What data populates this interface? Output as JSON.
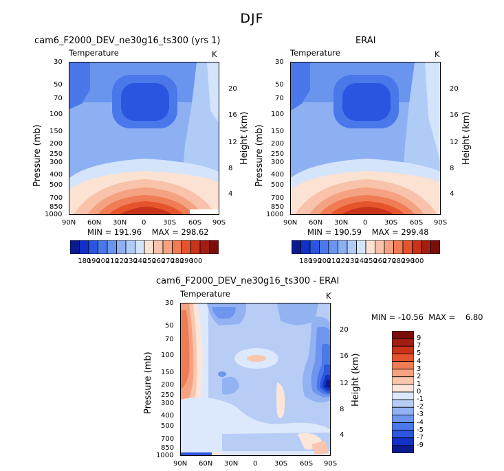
{
  "figure": {
    "season": "DJF",
    "colors": {
      "temperature_palette": [
        "#0a1a8f",
        "#1030c8",
        "#2a55e0",
        "#4a78ea",
        "#6a95ee",
        "#8cb0f2",
        "#b0cbf6",
        "#d4e4fb",
        "#fbe2d2",
        "#f8c3aa",
        "#f4a282",
        "#ef7c55",
        "#e6542e",
        "#c8331a",
        "#a31e12",
        "#7a0e0b"
      ],
      "difference_palette": [
        "#0a1a8f",
        "#1232c8",
        "#2c55e0",
        "#4c78ea",
        "#6e96ee",
        "#92b2f2",
        "#b8cdf6",
        "#dce8fc",
        "#fce6da",
        "#f9c6ae",
        "#f4a282",
        "#ef7c55",
        "#e6542e",
        "#c8331a",
        "#a31e12",
        "#7a0e0b"
      ]
    }
  },
  "panels": {
    "model": {
      "title": "cam6_F2000_DEV_ne30g16_ts300 (yrs 1)",
      "variable": "Temperature",
      "units": "K",
      "ylabel": "Pressure (mb)",
      "y2label": "Height (km)",
      "min_label": "MIN =",
      "min_value": "191.96",
      "max_label": "MAX =",
      "max_value": "298.62"
    },
    "obs": {
      "title": "ERAI",
      "variable": "Temperature",
      "units": "K",
      "ylabel": "Pressure (mb)",
      "y2label": "Height (km)",
      "min_label": "MIN =",
      "min_value": "190.59",
      "max_label": "MAX =",
      "max_value": "299.48"
    },
    "diff": {
      "title": "cam6_F2000_DEV_ne30g16_ts300 - ERAI",
      "variable": "Temperature",
      "units": "K",
      "ylabel": "Pressure (mb)",
      "y2label": "Height (km)",
      "min_label": "MIN =",
      "min_value": "-10.56",
      "max_label": "MAX =",
      "max_value": "6.80"
    }
  },
  "colorbars": {
    "temperature_labels": [
      "180",
      "190",
      "200",
      "210",
      "220",
      "230",
      "240",
      "250",
      "260",
      "270",
      "280",
      "290",
      "300"
    ],
    "difference_labels": [
      "9",
      "7",
      "5",
      "4",
      "3",
      "2",
      "1",
      "0",
      "-1",
      "-2",
      "-3",
      "-4",
      "-5",
      "-7",
      "-9"
    ]
  },
  "chart_data": [
    {
      "type": "heatmap",
      "title": "cam6_F2000_DEV_ne30g16_ts300 (yrs 1)",
      "variable": "Temperature",
      "units": "K",
      "xlabel": "",
      "ylabel": "Pressure (mb)",
      "y2label": "Height (km)",
      "x_ticks": [
        "90N",
        "60N",
        "30N",
        "0",
        "30S",
        "60S",
        "90S"
      ],
      "y_ticks": [
        30,
        50,
        70,
        100,
        150,
        200,
        250,
        300,
        400,
        500,
        700,
        850,
        1000
      ],
      "y_scale": "log",
      "y_range": [
        1000,
        30
      ],
      "y2_ticks": [
        4,
        8,
        12,
        16,
        20
      ],
      "min": 191.96,
      "max": 298.62
    },
    {
      "type": "heatmap",
      "title": "ERAI",
      "variable": "Temperature",
      "units": "K",
      "xlabel": "",
      "ylabel": "Pressure (mb)",
      "y2label": "Height (km)",
      "x_ticks": [
        "90N",
        "60N",
        "30N",
        "0",
        "30S",
        "60S",
        "90S"
      ],
      "y_ticks": [
        30,
        50,
        70,
        100,
        150,
        200,
        250,
        300,
        400,
        500,
        700,
        850,
        1000
      ],
      "y_scale": "log",
      "y_range": [
        1000,
        30
      ],
      "y2_ticks": [
        4,
        8,
        12,
        16,
        20
      ],
      "min": 190.59,
      "max": 299.48
    },
    {
      "type": "heatmap",
      "title": "cam6_F2000_DEV_ne30g16_ts300 - ERAI",
      "variable": "Temperature",
      "units": "K",
      "xlabel": "",
      "ylabel": "Pressure (mb)",
      "y2label": "Height (km)",
      "x_ticks": [
        "90N",
        "60N",
        "30N",
        "0",
        "30S",
        "60S",
        "90S"
      ],
      "y_ticks": [
        30,
        50,
        70,
        100,
        150,
        200,
        250,
        300,
        400,
        500,
        700,
        850,
        1000
      ],
      "y_scale": "log",
      "y_range": [
        1000,
        30
      ],
      "y2_ticks": [
        4,
        8,
        12,
        16,
        20
      ],
      "min": -10.56,
      "max": 6.8
    }
  ]
}
